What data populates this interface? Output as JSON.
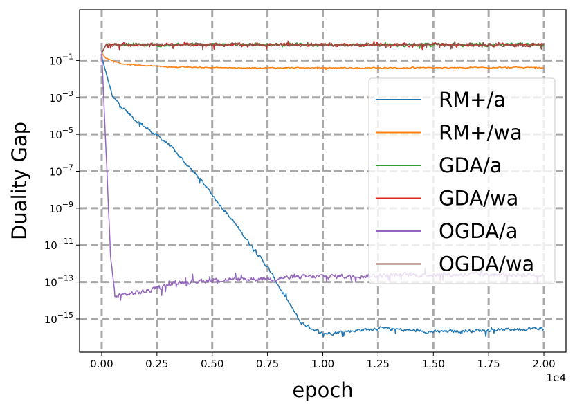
{
  "chart_data": {
    "type": "line",
    "title": "",
    "xlabel": "epoch",
    "ylabel": "Duality Gap",
    "x_scale_label": "1e4",
    "x_scale": 10000,
    "xlim": [
      -0.1,
      2.1
    ],
    "ylim_log10": [
      -16.8,
      1.75
    ],
    "y_scale": "log",
    "grid": true,
    "legend_position": "right",
    "x_ticks": [
      0.0,
      0.25,
      0.5,
      0.75,
      1.0,
      1.25,
      1.5,
      1.75,
      2.0
    ],
    "x_tick_labels": [
      "0.00",
      "0.25",
      "0.50",
      "0.75",
      "1.00",
      "1.25",
      "1.50",
      "1.75",
      "2.00"
    ],
    "y_ticks_log10": [
      -1,
      -3,
      -5,
      -7,
      -9,
      -11,
      -13,
      -15
    ],
    "y_tick_labels": [
      {
        "base": "10",
        "exp": "−1"
      },
      {
        "base": "10",
        "exp": "−3"
      },
      {
        "base": "10",
        "exp": "−5"
      },
      {
        "base": "10",
        "exp": "−7"
      },
      {
        "base": "10",
        "exp": "−9"
      },
      {
        "base": "10",
        "exp": "−11"
      },
      {
        "base": "10",
        "exp": "−13"
      },
      {
        "base": "10",
        "exp": "−15"
      }
    ],
    "series": [
      {
        "name": "RM+/a",
        "color": "#1f77b4",
        "noise": 0.15,
        "x": [
          0.0,
          0.05,
          0.15,
          0.3,
          0.45,
          0.6,
          0.75,
          0.85,
          0.9,
          0.95,
          1.0,
          1.25,
          1.5,
          1.75,
          2.0
        ],
        "y_log10": [
          -0.8,
          -3.0,
          -4.2,
          -5.5,
          -7.5,
          -9.8,
          -12.2,
          -14.2,
          -15.2,
          -15.5,
          -15.8,
          -15.5,
          -15.7,
          -15.6,
          -15.5
        ]
      },
      {
        "name": "RM+/wa",
        "color": "#ff7f0e",
        "noise": 0.05,
        "x": [
          0.0,
          0.02,
          0.1,
          0.3,
          0.6,
          1.0,
          1.5,
          2.0
        ],
        "y_log10": [
          -0.6,
          -0.9,
          -1.2,
          -1.35,
          -1.4,
          -1.4,
          -1.4,
          -1.38
        ]
      },
      {
        "name": "GDA/a",
        "color": "#2ca02c",
        "noise": 0.14,
        "x": [
          0.0,
          0.02,
          2.0
        ],
        "y_log10": [
          -0.6,
          -0.15,
          -0.15
        ]
      },
      {
        "name": "GDA/wa",
        "color": "#d62728",
        "noise": 0.14,
        "x": [
          0.0,
          0.02,
          2.0
        ],
        "y_log10": [
          -0.6,
          -0.15,
          -0.15
        ]
      },
      {
        "name": "OGDA/a",
        "color": "#9467bd",
        "noise": 0.22,
        "x": [
          0.0,
          0.02,
          0.04,
          0.06,
          0.1,
          0.2,
          0.35,
          0.5,
          1.0,
          1.5,
          2.0
        ],
        "y_log10": [
          -0.5,
          -6.0,
          -11.5,
          -13.8,
          -13.7,
          -13.5,
          -13.0,
          -12.9,
          -12.7,
          -12.6,
          -12.6
        ]
      },
      {
        "name": "OGDA/wa",
        "color": "#8c564b",
        "noise": 0.14,
        "x": [
          0.0,
          0.02,
          2.0
        ],
        "y_log10": [
          -0.6,
          -0.15,
          -0.15
        ]
      }
    ]
  }
}
